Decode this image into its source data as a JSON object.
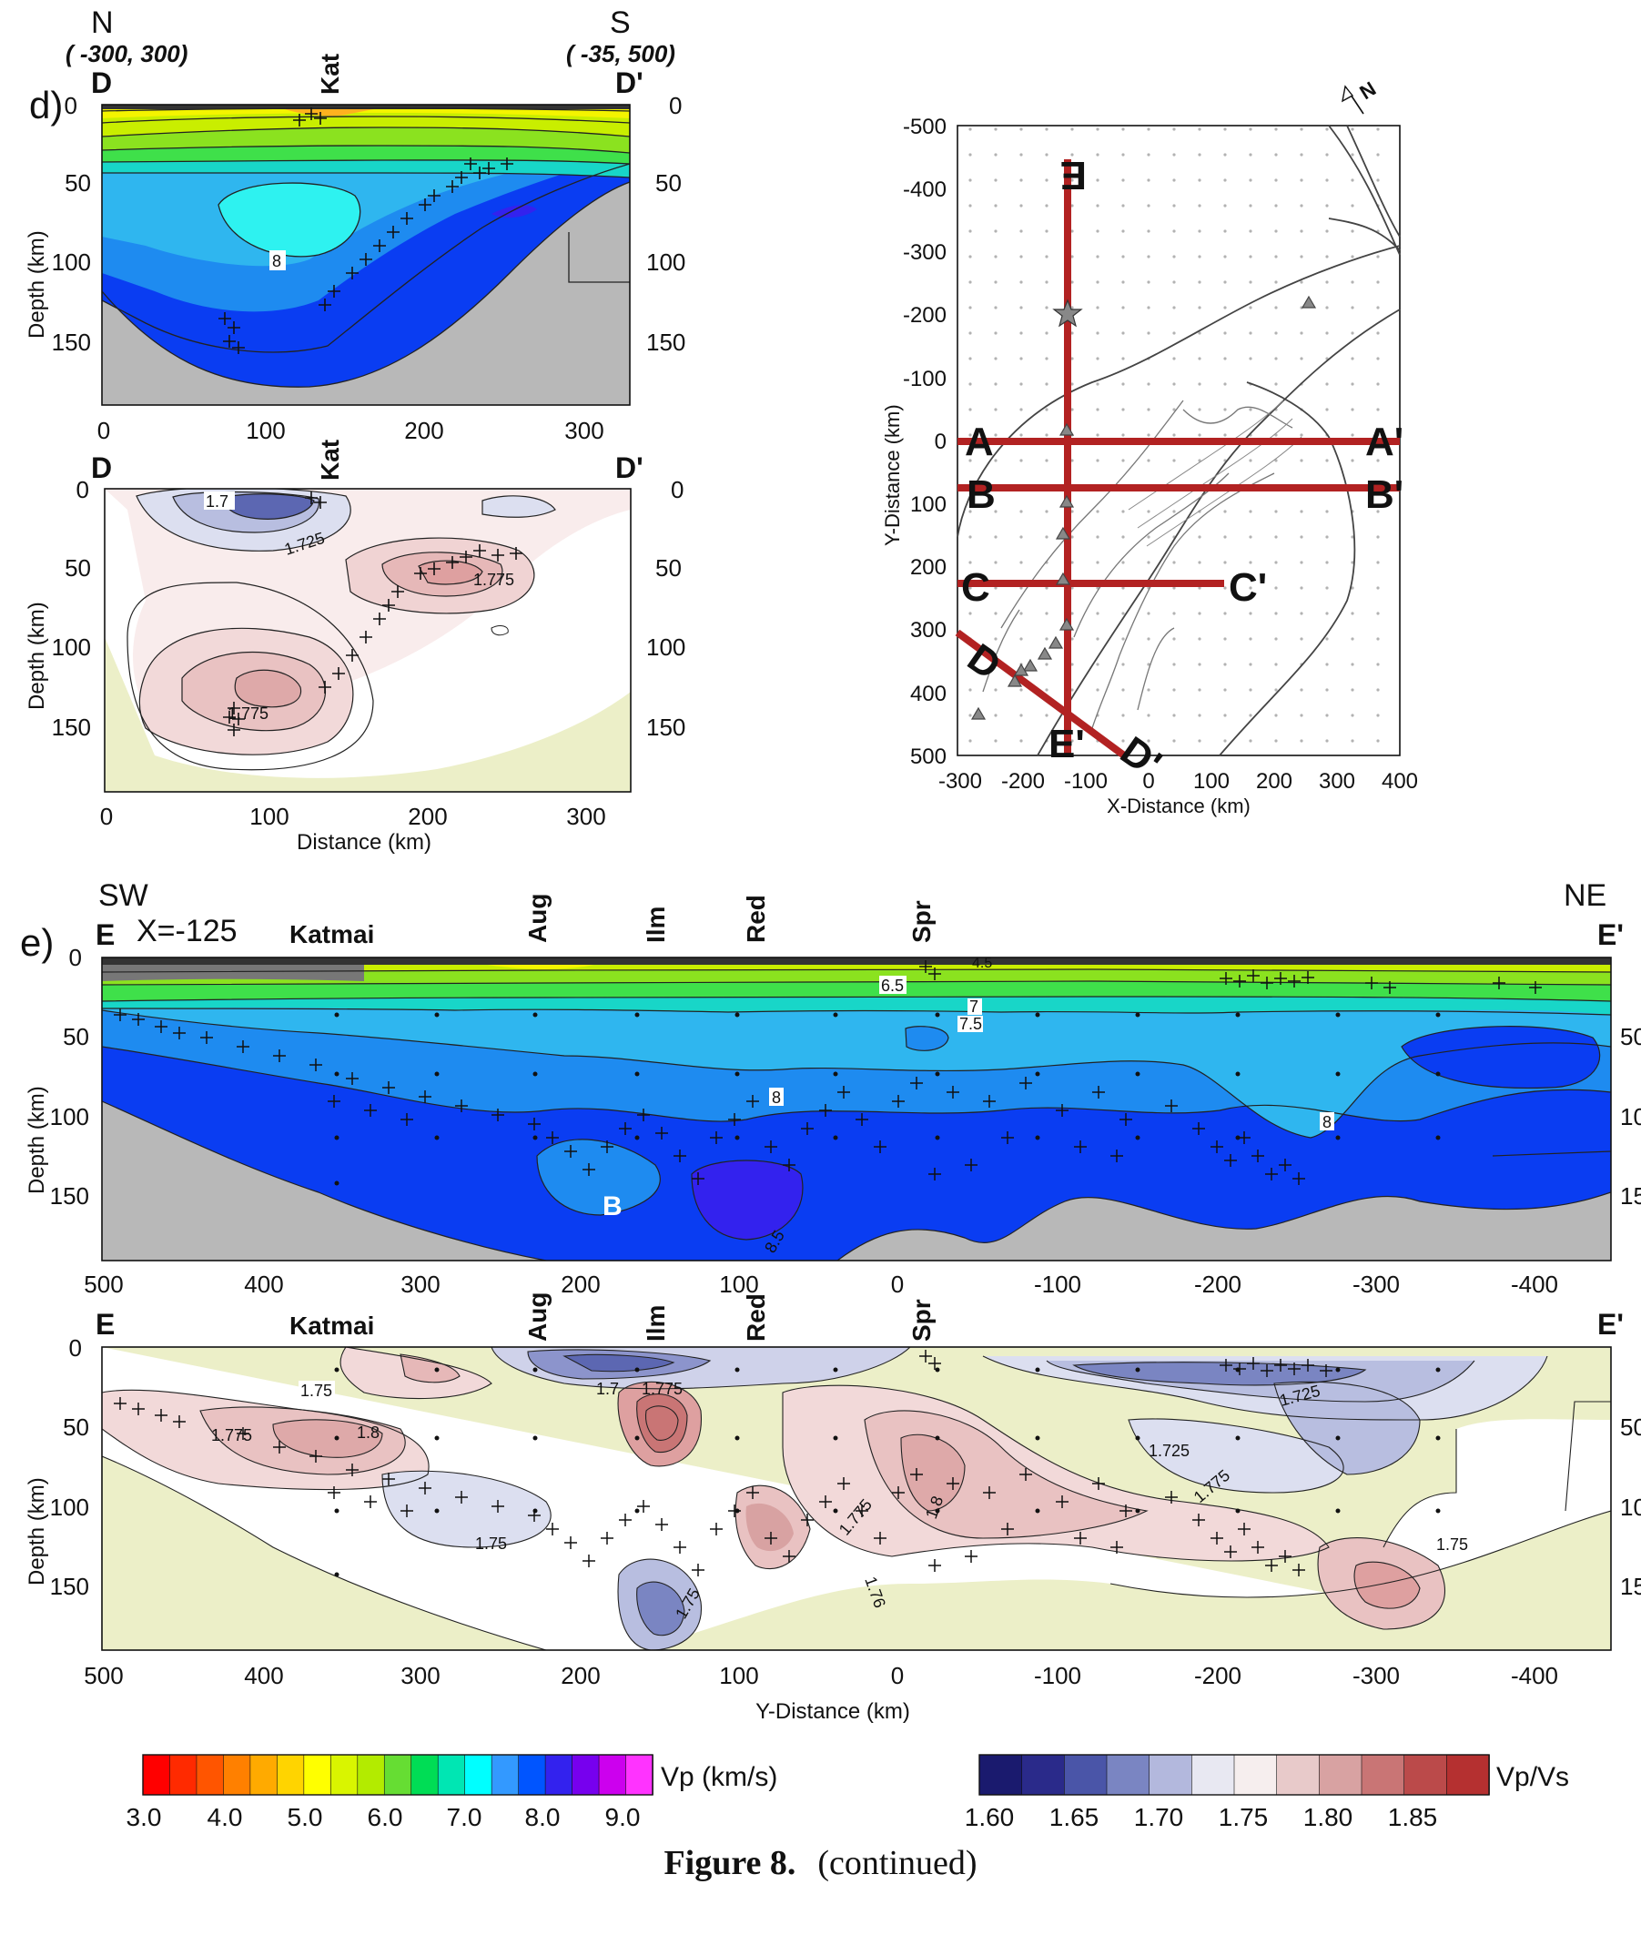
{
  "panel_d": {
    "panel_label": "d)",
    "north_label": "N",
    "south_label": "S",
    "north_coord": "( -300, 300)",
    "south_coord": "( -35, 500)",
    "profile_start": "D",
    "profile_end": "D'",
    "volcano": "Kat",
    "y_axis_label": "Depth (km)",
    "x_axis_label": "Distance (km)",
    "depth_ticks": [
      "0",
      "50",
      "100",
      "150"
    ],
    "distance_ticks": [
      "0",
      "100",
      "200",
      "300"
    ],
    "vp_contour_label": "8",
    "vpvs_contour_labels": [
      "1.7",
      "1.725",
      "1.775",
      "1.775"
    ]
  },
  "map": {
    "north_arrow": "N",
    "y_axis_label": "Y-Distance (km)",
    "x_axis_label": "X-Distance (km)",
    "y_ticks": [
      "-500",
      "-400",
      "-300",
      "-200",
      "-100",
      "0",
      "100",
      "200",
      "300",
      "400",
      "500"
    ],
    "x_ticks": [
      "-300",
      "-200",
      "-100",
      "0",
      "100",
      "200",
      "300",
      "400"
    ],
    "profiles": [
      {
        "start": "A",
        "end": "A'"
      },
      {
        "start": "B",
        "end": "B'"
      },
      {
        "start": "C",
        "end": "C'"
      },
      {
        "start": "D",
        "end": "D'"
      },
      {
        "start": "E",
        "end": "E'"
      }
    ]
  },
  "panel_e": {
    "panel_label": "e)",
    "sw_label": "SW",
    "ne_label": "NE",
    "profile_start": "E",
    "profile_end": "E'",
    "profile_position": "X=-125",
    "volcanoes": [
      "Katmai",
      "Aug",
      "Ilm",
      "Red",
      "Spr"
    ],
    "y_axis_label": "Depth (km)",
    "x_axis_label": "Y-Distance (km)",
    "depth_ticks": [
      "0",
      "50",
      "100",
      "150"
    ],
    "distance_ticks": [
      "500",
      "400",
      "300",
      "200",
      "100",
      "0",
      "-100",
      "-200",
      "-300",
      "-400"
    ],
    "vp_contour_labels": [
      "6.5",
      "7",
      "7.5",
      "8",
      "8",
      "8.5",
      "4.5"
    ],
    "vp_feature_label": "B",
    "vpvs_contour_labels": [
      "1.75",
      "1.775",
      "1.8",
      "1.7",
      "1.775",
      "1.725",
      "1.725",
      "1.775",
      "1.8",
      "1.775",
      "1.75",
      "1.75",
      "1.75",
      "1.76"
    ]
  },
  "colorbars": {
    "vp_label": "Vp (km/s)",
    "vp_ticks": [
      "3.0",
      "4.0",
      "5.0",
      "6.0",
      "7.0",
      "8.0",
      "9.0"
    ],
    "vp_colors": [
      "#ff0000",
      "#ff2a00",
      "#ff5500",
      "#ff8000",
      "#ffaa00",
      "#ffd400",
      "#ffff00",
      "#d9f500",
      "#b3eb00",
      "#66dd33",
      "#00dd55",
      "#00e6b3",
      "#00ffff",
      "#3399ff",
      "#0055ff",
      "#3322ee",
      "#7700ee",
      "#cc00ee",
      "#ff33ff"
    ],
    "vpvs_label": "Vp/Vs",
    "vpvs_ticks": [
      "1.60",
      "1.65",
      "1.70",
      "1.75",
      "1.80",
      "1.85"
    ],
    "vpvs_colors": [
      "#1a1a6e",
      "#2a2a8a",
      "#4a55a8",
      "#7a85c2",
      "#b3b8dd",
      "#e8e8f2",
      "#f6eeee",
      "#e8caca",
      "#d8a2a2",
      "#c97575",
      "#bb4a4a",
      "#b53030"
    ]
  },
  "caption": {
    "figure_label": "Figure 8.",
    "text": "(continued)"
  }
}
